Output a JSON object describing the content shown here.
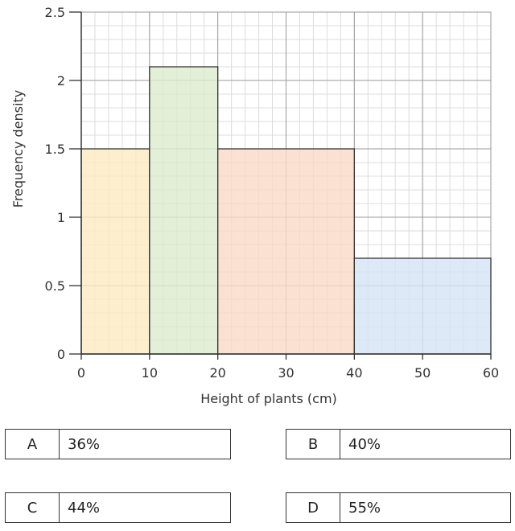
{
  "chart_data": {
    "type": "histogram",
    "xlabel": "Height of plants (cm)",
    "ylabel": "Frequency density",
    "xlim": [
      0,
      60
    ],
    "ylim": [
      0,
      2.5
    ],
    "x_ticks": [
      "0",
      "10",
      "20",
      "30",
      "40",
      "50",
      "60"
    ],
    "y_ticks": [
      "0",
      "0.5",
      "1",
      "1.5",
      "2",
      "2.5"
    ],
    "grid": true,
    "bins": [
      {
        "start": 0,
        "end": 10,
        "frequency_density": 1.5,
        "color": "#fdebc0"
      },
      {
        "start": 10,
        "end": 20,
        "frequency_density": 2.1,
        "color": "#dcebcc"
      },
      {
        "start": 20,
        "end": 40,
        "frequency_density": 1.5,
        "color": "#f9dac6"
      },
      {
        "start": 40,
        "end": 60,
        "frequency_density": 0.7,
        "color": "#d6e4f5"
      }
    ]
  },
  "options": [
    {
      "letter": "A",
      "value": "36%"
    },
    {
      "letter": "B",
      "value": "40%"
    },
    {
      "letter": "C",
      "value": "44%"
    },
    {
      "letter": "D",
      "value": "55%"
    }
  ]
}
